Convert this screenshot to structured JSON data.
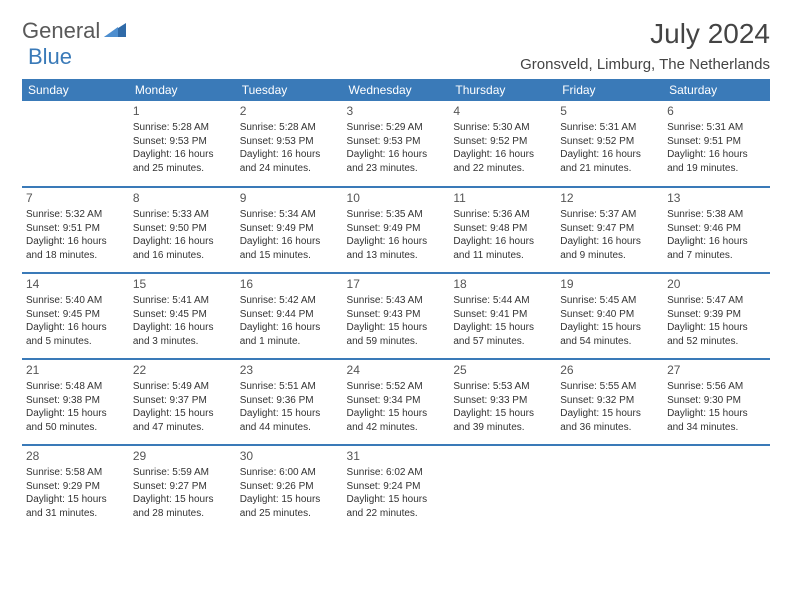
{
  "logo": {
    "general": "General",
    "blue": "Blue"
  },
  "title": "July 2024",
  "location": "Gronsveld, Limburg, The Netherlands",
  "colors": {
    "accent": "#3a7ab8",
    "text": "#333333",
    "bg": "#ffffff"
  },
  "dayHeaders": [
    "Sunday",
    "Monday",
    "Tuesday",
    "Wednesday",
    "Thursday",
    "Friday",
    "Saturday"
  ],
  "weeks": [
    [
      null,
      {
        "n": "1",
        "sr": "Sunrise: 5:28 AM",
        "ss": "Sunset: 9:53 PM",
        "d1": "Daylight: 16 hours",
        "d2": "and 25 minutes."
      },
      {
        "n": "2",
        "sr": "Sunrise: 5:28 AM",
        "ss": "Sunset: 9:53 PM",
        "d1": "Daylight: 16 hours",
        "d2": "and 24 minutes."
      },
      {
        "n": "3",
        "sr": "Sunrise: 5:29 AM",
        "ss": "Sunset: 9:53 PM",
        "d1": "Daylight: 16 hours",
        "d2": "and 23 minutes."
      },
      {
        "n": "4",
        "sr": "Sunrise: 5:30 AM",
        "ss": "Sunset: 9:52 PM",
        "d1": "Daylight: 16 hours",
        "d2": "and 22 minutes."
      },
      {
        "n": "5",
        "sr": "Sunrise: 5:31 AM",
        "ss": "Sunset: 9:52 PM",
        "d1": "Daylight: 16 hours",
        "d2": "and 21 minutes."
      },
      {
        "n": "6",
        "sr": "Sunrise: 5:31 AM",
        "ss": "Sunset: 9:51 PM",
        "d1": "Daylight: 16 hours",
        "d2": "and 19 minutes."
      }
    ],
    [
      {
        "n": "7",
        "sr": "Sunrise: 5:32 AM",
        "ss": "Sunset: 9:51 PM",
        "d1": "Daylight: 16 hours",
        "d2": "and 18 minutes."
      },
      {
        "n": "8",
        "sr": "Sunrise: 5:33 AM",
        "ss": "Sunset: 9:50 PM",
        "d1": "Daylight: 16 hours",
        "d2": "and 16 minutes."
      },
      {
        "n": "9",
        "sr": "Sunrise: 5:34 AM",
        "ss": "Sunset: 9:49 PM",
        "d1": "Daylight: 16 hours",
        "d2": "and 15 minutes."
      },
      {
        "n": "10",
        "sr": "Sunrise: 5:35 AM",
        "ss": "Sunset: 9:49 PM",
        "d1": "Daylight: 16 hours",
        "d2": "and 13 minutes."
      },
      {
        "n": "11",
        "sr": "Sunrise: 5:36 AM",
        "ss": "Sunset: 9:48 PM",
        "d1": "Daylight: 16 hours",
        "d2": "and 11 minutes."
      },
      {
        "n": "12",
        "sr": "Sunrise: 5:37 AM",
        "ss": "Sunset: 9:47 PM",
        "d1": "Daylight: 16 hours",
        "d2": "and 9 minutes."
      },
      {
        "n": "13",
        "sr": "Sunrise: 5:38 AM",
        "ss": "Sunset: 9:46 PM",
        "d1": "Daylight: 16 hours",
        "d2": "and 7 minutes."
      }
    ],
    [
      {
        "n": "14",
        "sr": "Sunrise: 5:40 AM",
        "ss": "Sunset: 9:45 PM",
        "d1": "Daylight: 16 hours",
        "d2": "and 5 minutes."
      },
      {
        "n": "15",
        "sr": "Sunrise: 5:41 AM",
        "ss": "Sunset: 9:45 PM",
        "d1": "Daylight: 16 hours",
        "d2": "and 3 minutes."
      },
      {
        "n": "16",
        "sr": "Sunrise: 5:42 AM",
        "ss": "Sunset: 9:44 PM",
        "d1": "Daylight: 16 hours",
        "d2": "and 1 minute."
      },
      {
        "n": "17",
        "sr": "Sunrise: 5:43 AM",
        "ss": "Sunset: 9:43 PM",
        "d1": "Daylight: 15 hours",
        "d2": "and 59 minutes."
      },
      {
        "n": "18",
        "sr": "Sunrise: 5:44 AM",
        "ss": "Sunset: 9:41 PM",
        "d1": "Daylight: 15 hours",
        "d2": "and 57 minutes."
      },
      {
        "n": "19",
        "sr": "Sunrise: 5:45 AM",
        "ss": "Sunset: 9:40 PM",
        "d1": "Daylight: 15 hours",
        "d2": "and 54 minutes."
      },
      {
        "n": "20",
        "sr": "Sunrise: 5:47 AM",
        "ss": "Sunset: 9:39 PM",
        "d1": "Daylight: 15 hours",
        "d2": "and 52 minutes."
      }
    ],
    [
      {
        "n": "21",
        "sr": "Sunrise: 5:48 AM",
        "ss": "Sunset: 9:38 PM",
        "d1": "Daylight: 15 hours",
        "d2": "and 50 minutes."
      },
      {
        "n": "22",
        "sr": "Sunrise: 5:49 AM",
        "ss": "Sunset: 9:37 PM",
        "d1": "Daylight: 15 hours",
        "d2": "and 47 minutes."
      },
      {
        "n": "23",
        "sr": "Sunrise: 5:51 AM",
        "ss": "Sunset: 9:36 PM",
        "d1": "Daylight: 15 hours",
        "d2": "and 44 minutes."
      },
      {
        "n": "24",
        "sr": "Sunrise: 5:52 AM",
        "ss": "Sunset: 9:34 PM",
        "d1": "Daylight: 15 hours",
        "d2": "and 42 minutes."
      },
      {
        "n": "25",
        "sr": "Sunrise: 5:53 AM",
        "ss": "Sunset: 9:33 PM",
        "d1": "Daylight: 15 hours",
        "d2": "and 39 minutes."
      },
      {
        "n": "26",
        "sr": "Sunrise: 5:55 AM",
        "ss": "Sunset: 9:32 PM",
        "d1": "Daylight: 15 hours",
        "d2": "and 36 minutes."
      },
      {
        "n": "27",
        "sr": "Sunrise: 5:56 AM",
        "ss": "Sunset: 9:30 PM",
        "d1": "Daylight: 15 hours",
        "d2": "and 34 minutes."
      }
    ],
    [
      {
        "n": "28",
        "sr": "Sunrise: 5:58 AM",
        "ss": "Sunset: 9:29 PM",
        "d1": "Daylight: 15 hours",
        "d2": "and 31 minutes."
      },
      {
        "n": "29",
        "sr": "Sunrise: 5:59 AM",
        "ss": "Sunset: 9:27 PM",
        "d1": "Daylight: 15 hours",
        "d2": "and 28 minutes."
      },
      {
        "n": "30",
        "sr": "Sunrise: 6:00 AM",
        "ss": "Sunset: 9:26 PM",
        "d1": "Daylight: 15 hours",
        "d2": "and 25 minutes."
      },
      {
        "n": "31",
        "sr": "Sunrise: 6:02 AM",
        "ss": "Sunset: 9:24 PM",
        "d1": "Daylight: 15 hours",
        "d2": "and 22 minutes."
      },
      null,
      null,
      null
    ]
  ]
}
